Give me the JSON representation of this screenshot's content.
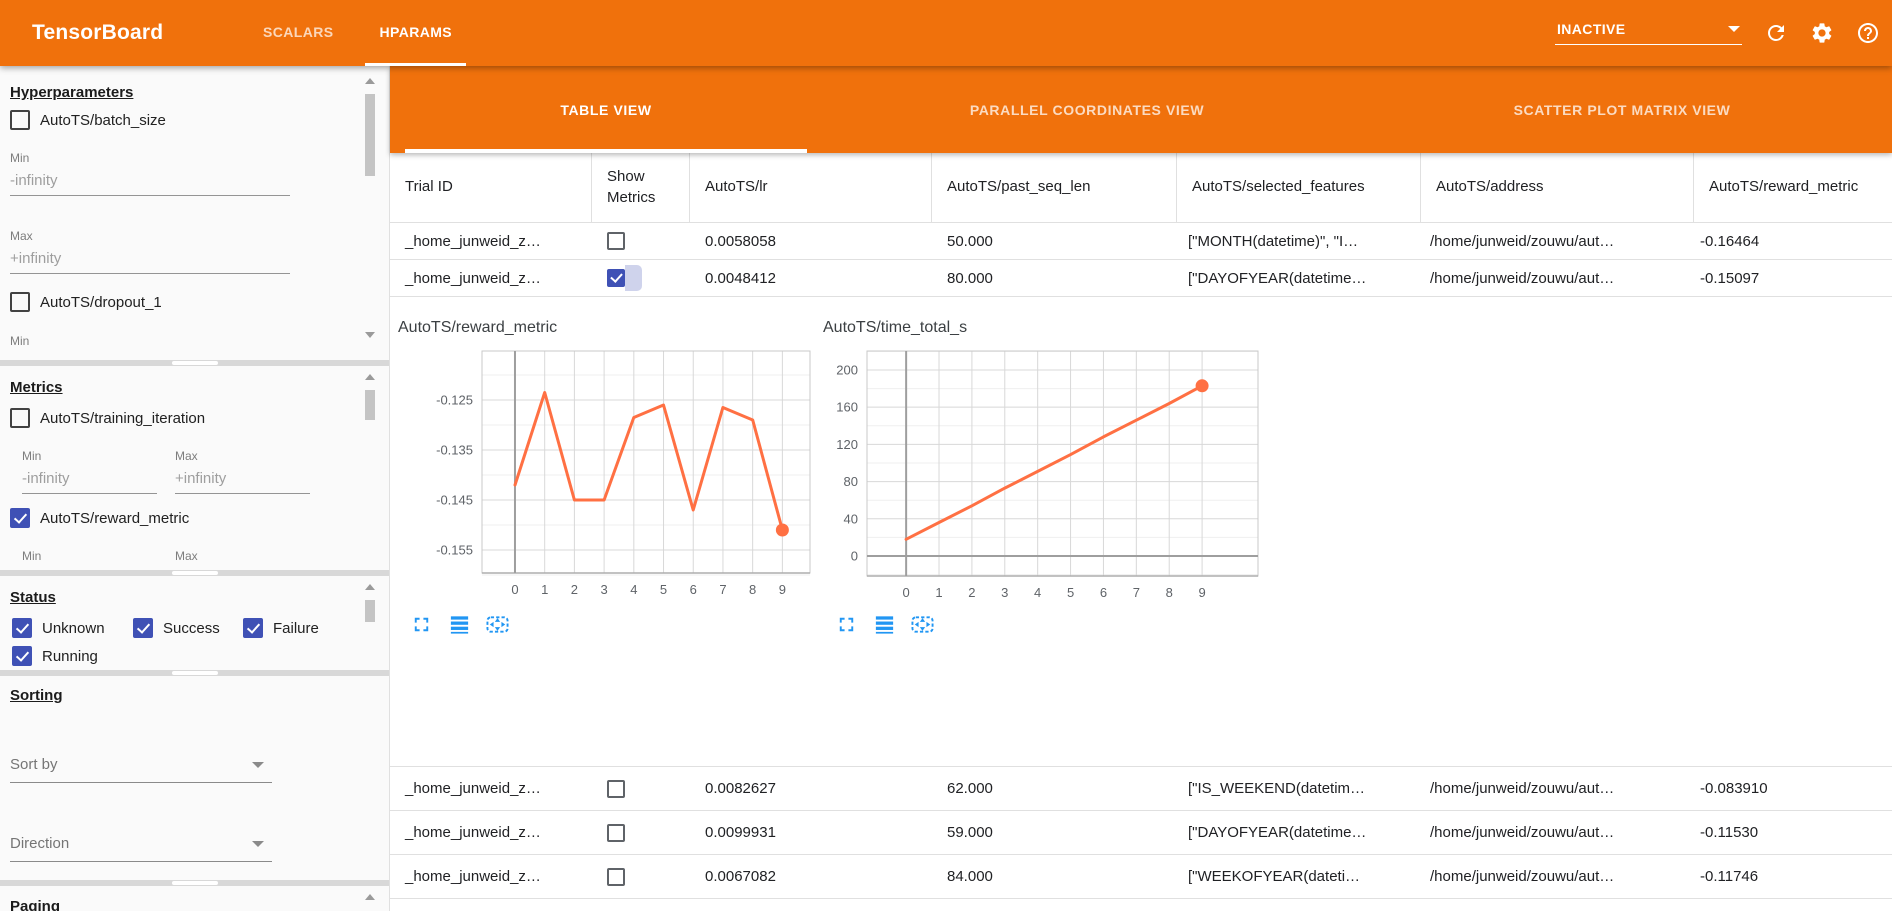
{
  "toolbar": {
    "logo": "TensorBoard",
    "tabs": [
      {
        "label": "SCALARS",
        "active": false
      },
      {
        "label": "HPARAMS",
        "active": true
      }
    ],
    "run_selector": {
      "value": "INACTIVE"
    },
    "icons": [
      "refresh-icon",
      "settings-gear-icon",
      "help-icon"
    ]
  },
  "sidebar": {
    "hyperparameters": {
      "title": "Hyperparameters",
      "params": [
        {
          "label": "AutoTS/batch_size",
          "checked": false
        },
        {
          "label": "AutoTS/dropout_1",
          "checked": false
        }
      ],
      "min_label": "Min",
      "max_label": "Max",
      "min_value": "-infinity",
      "max_value": "+infinity",
      "clipped_label": "Min"
    },
    "metrics": {
      "title": "Metrics",
      "params": [
        {
          "label": "AutoTS/training_iteration",
          "checked": false
        },
        {
          "label": "AutoTS/reward_metric",
          "checked": true
        }
      ],
      "min_label": "Min",
      "max_label": "Max",
      "min_value": "-infinity",
      "max_value": "+infinity",
      "clipped_min": "Min",
      "clipped_max": "Max"
    },
    "status": {
      "title": "Status",
      "options": [
        {
          "label": "Unknown",
          "checked": true
        },
        {
          "label": "Success",
          "checked": true
        },
        {
          "label": "Failure",
          "checked": true
        },
        {
          "label": "Running",
          "checked": true
        }
      ]
    },
    "sorting": {
      "title": "Sorting",
      "sort_by": "Sort by",
      "direction": "Direction"
    },
    "paging": {
      "title": "Paging"
    }
  },
  "main": {
    "view_tabs": [
      {
        "label": "TABLE VIEW",
        "active": true
      },
      {
        "label": "PARALLEL COORDINATES VIEW",
        "active": false
      },
      {
        "label": "SCATTER PLOT MATRIX VIEW",
        "active": false
      }
    ],
    "table": {
      "columns": [
        "Trial ID",
        "Show Metrics",
        "AutoTS/lr",
        "AutoTS/past_seq_len",
        "AutoTS/selected_features",
        "AutoTS/address",
        "AutoTS/reward_metric"
      ],
      "rows": [
        {
          "trial_id": "_home_junweid_z…",
          "show_metrics": false,
          "lr": "0.0058058",
          "past_seq_len": "50.000",
          "selected_features": "[\"MONTH(datetime)\", \"I…",
          "address": "/home/junweid/zouwu/aut…",
          "reward_metric": "-0.16464"
        },
        {
          "trial_id": "_home_junweid_z…",
          "show_metrics": true,
          "lr": "0.0048412",
          "past_seq_len": "80.000",
          "selected_features": "[\"DAYOFYEAR(datetime…",
          "address": "/home/junweid/zouwu/aut…",
          "reward_metric": "-0.15097"
        },
        {
          "trial_id": "_home_junweid_z…",
          "show_metrics": false,
          "lr": "0.0082627",
          "past_seq_len": "62.000",
          "selected_features": "[\"IS_WEEKEND(datetim…",
          "address": "/home/junweid/zouwu/aut…",
          "reward_metric": "-0.083910"
        },
        {
          "trial_id": "_home_junweid_z…",
          "show_metrics": false,
          "lr": "0.0099931",
          "past_seq_len": "59.000",
          "selected_features": "[\"DAYOFYEAR(datetime…",
          "address": "/home/junweid/zouwu/aut…",
          "reward_metric": "-0.11530"
        },
        {
          "trial_id": "_home_junweid_z…",
          "show_metrics": false,
          "lr": "0.0067082",
          "past_seq_len": "84.000",
          "selected_features": "[\"WEEKOFYEAR(dateti…",
          "address": "/home/junweid/zouwu/aut…",
          "reward_metric": "-0.11746"
        }
      ]
    }
  },
  "chart_data": [
    {
      "type": "line",
      "title": "AutoTS/reward_metric",
      "x": [
        0,
        1,
        2,
        3,
        4,
        5,
        6,
        7,
        8,
        9
      ],
      "values": [
        -0.142,
        -0.1235,
        -0.145,
        -0.145,
        -0.1285,
        -0.126,
        -0.147,
        -0.1265,
        -0.129,
        -0.151
      ],
      "xtick_labels": [
        "0",
        "1",
        "2",
        "3",
        "4",
        "5",
        "6",
        "7",
        "8",
        "9"
      ],
      "yticks": [
        -0.125,
        -0.135,
        -0.145,
        -0.155
      ],
      "ytick_labels": [
        "-0.125",
        "-0.135",
        "-0.145",
        "-0.155"
      ],
      "xlim": [
        -1.11,
        9.93
      ],
      "ylim": [
        -0.1596,
        -0.1152
      ],
      "grid": true,
      "line_color": "#ff7043",
      "endpoint_dot": true,
      "zero_axis_x": true,
      "zero_axis_y": false
    },
    {
      "type": "line",
      "title": "AutoTS/time_total_s",
      "x": [
        0,
        1,
        2,
        3,
        4,
        5,
        6,
        7,
        8,
        9
      ],
      "values": [
        18,
        36,
        54,
        73,
        91,
        109,
        128,
        146,
        164,
        183
      ],
      "xtick_labels": [
        "0",
        "1",
        "2",
        "3",
        "4",
        "5",
        "6",
        "7",
        "8",
        "9"
      ],
      "yticks": [
        0,
        40,
        80,
        120,
        160,
        200
      ],
      "ytick_labels": [
        "0",
        "40",
        "80",
        "120",
        "160",
        "200"
      ],
      "xlim": [
        -1.19,
        10.7
      ],
      "ylim": [
        -21.5,
        220.4
      ],
      "grid": true,
      "line_color": "#ff7043",
      "endpoint_dot": true,
      "zero_axis_x": true,
      "zero_axis_y": true
    }
  ],
  "colors": {
    "header_orange": "#f0710c",
    "checkbox_indigo": "#3f51b5",
    "chart_line": "#ff7043",
    "control_icon_blue": "#2196f3"
  }
}
